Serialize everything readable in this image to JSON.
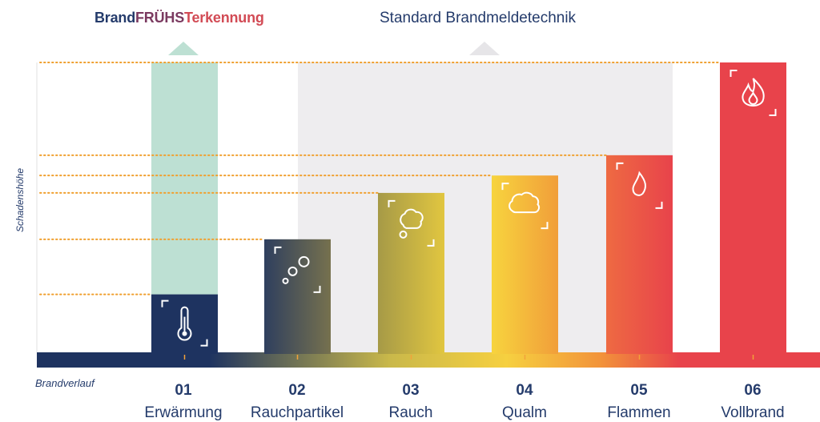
{
  "header": {
    "early_detection": [
      "Brand",
      "FRÜHS",
      "Terkennung"
    ],
    "standard": "Standard Brandmeldetechnik"
  },
  "colors": {
    "navy": "#1e3360",
    "mint": "#bde0d3",
    "grey_zone": "#eeedef",
    "orange_dots": "#f0a030",
    "red": "#e8434b",
    "yellow": "#f6d040"
  },
  "chart_data": {
    "type": "bar",
    "xlabel": "Brandverlauf",
    "ylabel": "Schadenshöhe",
    "categories": [
      "Erwärmung",
      "Rauchpartikel",
      "Rauch",
      "Qualm",
      "Flammen",
      "Vollbrand"
    ],
    "numbers": [
      "01",
      "02",
      "03",
      "04",
      "05",
      "06"
    ],
    "values": [
      20,
      39,
      55,
      61,
      68,
      100
    ],
    "ylim": [
      0,
      100
    ],
    "icons": [
      "thermometer-icon",
      "particles-icon",
      "smoke-icon",
      "dense-smoke-icon",
      "flame-icon",
      "fire-icon"
    ],
    "early_detection_range": [
      20,
      100
    ],
    "standard_detection_range": [
      39,
      100
    ]
  }
}
